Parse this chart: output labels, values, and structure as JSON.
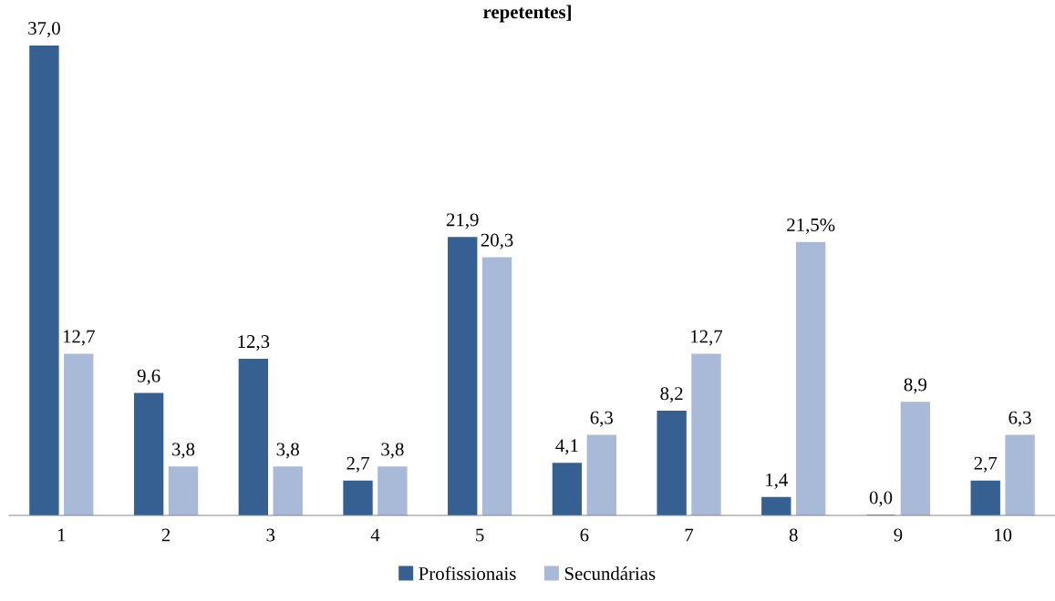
{
  "chart_data": {
    "type": "bar",
    "title": "repetentes]",
    "categories": [
      "1",
      "2",
      "3",
      "4",
      "5",
      "6",
      "7",
      "8",
      "9",
      "10"
    ],
    "series": [
      {
        "name": "Profissionais",
        "color": "#376092",
        "values": [
          37.0,
          9.6,
          12.3,
          2.7,
          21.9,
          4.1,
          8.2,
          1.4,
          0.0,
          2.7
        ],
        "value_labels": [
          "37,0",
          "9,6",
          "12,3",
          "2,7",
          "21,9",
          "4,1",
          "8,2",
          "1,4",
          "0,0",
          "2,7"
        ]
      },
      {
        "name": "Secundárias",
        "color": "#a9b9d8",
        "values": [
          12.7,
          3.8,
          3.8,
          3.8,
          20.3,
          6.3,
          12.7,
          21.5,
          8.9,
          6.3
        ],
        "value_labels": [
          "12,7",
          "3,8",
          "3,8",
          "3,8",
          "20,3",
          "6,3",
          "12,7",
          "21,5%",
          "8,9",
          "6,3"
        ]
      }
    ],
    "legend": "bottom",
    "grid": false,
    "tick_labels": "x"
  }
}
